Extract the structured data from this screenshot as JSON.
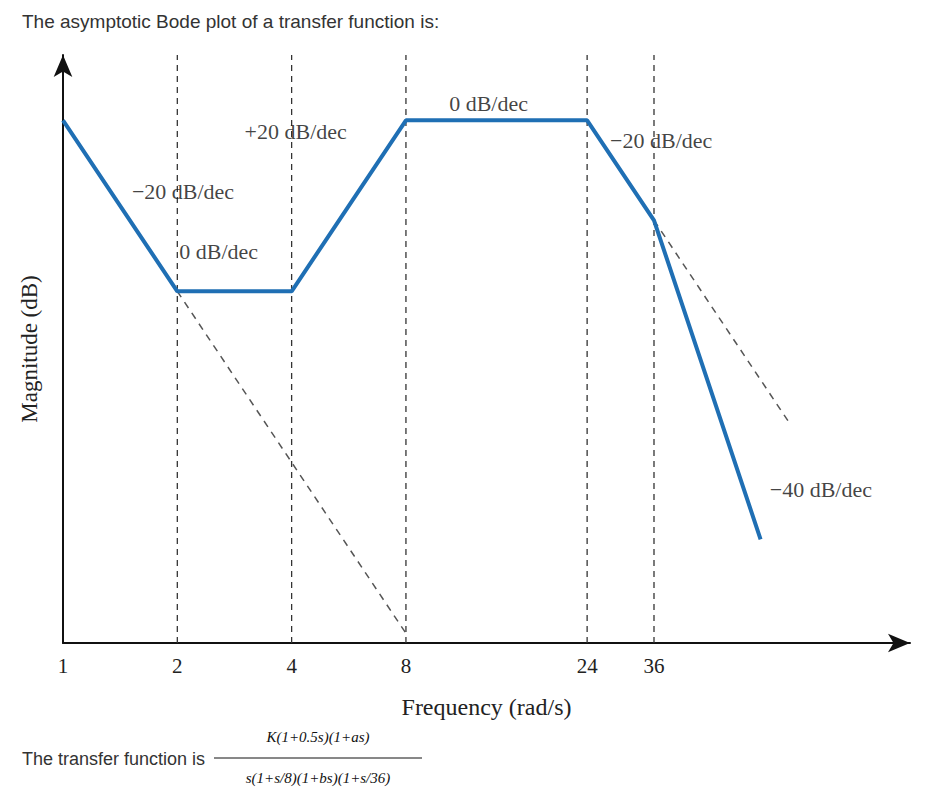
{
  "chart_data": {
    "type": "line",
    "title": "The asymptotic Bode plot of a transfer function is:",
    "x_label": "Frequency (rad/s)",
    "y_label": "Magnitude (dB)",
    "log": "x",
    "grid": true,
    "tick_labels": "x",
    "xlim": [
      1,
      170
    ],
    "xticks": [
      1,
      2,
      4,
      8,
      24,
      36
    ],
    "ylim": [
      0,
      20.7
    ],
    "series": [
      {
        "x": [
          1,
          2,
          4,
          8,
          24,
          36,
          68.7
        ],
        "values": [
          18.4,
          12.38,
          12.38,
          18.4,
          18.4,
          14.88,
          3.65
        ],
        "color": "#1f6fb4",
        "line_style": "solid"
      },
      {
        "x": [
          2,
          8
        ],
        "values": [
          12.38,
          0.34
        ],
        "color": "#555555",
        "line_style": "dashed"
      },
      {
        "x": [
          36,
          81.6
        ],
        "values": [
          14.88,
          7.77
        ],
        "color": "#555555",
        "line_style": "dashed"
      }
    ],
    "annotations": [
      {
        "text": "−20 dB/dec",
        "x": 2.07,
        "y": 15.9
      },
      {
        "text": "0 dB/dec",
        "x": 2.57,
        "y": 13.8
      },
      {
        "text": "+20 dB/dec",
        "x": 4.1,
        "y": 18.0
      },
      {
        "text": "0 dB/dec",
        "x": 13.2,
        "y": 19.0
      },
      {
        "text": "−20 dB/dec",
        "x": 37.6,
        "y": 17.7
      },
      {
        "text": "−40 dB/dec",
        "x": 99,
        "y": 5.4
      }
    ],
    "caption": {
      "prefix": "The transfer function is",
      "numerator": "K(1+0.5s)(1+as)",
      "denominator": "s(1+s/8)(1+bs)(1+s/36)"
    }
  }
}
